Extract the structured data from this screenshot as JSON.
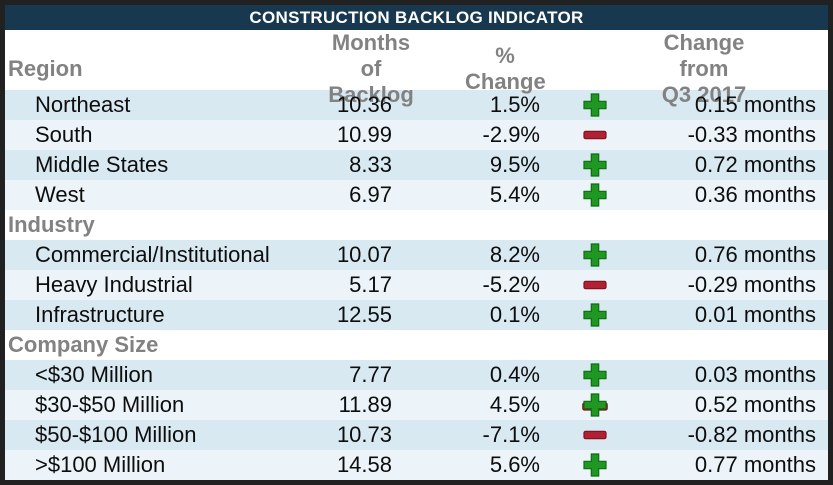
{
  "title": "CONSTRUCTION BACKLOG INDICATOR",
  "header": {
    "region_label": "Region",
    "months_lines": [
      "Months of",
      "Backlog"
    ],
    "pct_label": "% Change",
    "change_lines": [
      "Change from",
      "Q3 2017"
    ]
  },
  "colors": {
    "title_bar": "#17384f",
    "border": "#212121",
    "header_text": "#828282",
    "row_shade_a": "#d9e9f2",
    "row_shade_b": "#edf4f9",
    "positive_green": "#1f9722",
    "positive_green_edge": "#0f6d13",
    "negative_red": "#b02134",
    "negative_red_edge": "#7d1123"
  },
  "chart_data": {
    "type": "table",
    "title": "CONSTRUCTION BACKLOG INDICATOR",
    "columns": [
      "Region",
      "Months of Backlog",
      "% Change",
      "Direction",
      "Change from Q3 2017"
    ],
    "sections": [
      {
        "label": "Region",
        "own_row": false,
        "rows": [
          {
            "name": "Northeast",
            "months": 10.36,
            "pct": "1.5%",
            "direction": "up",
            "change": "0.15 months"
          },
          {
            "name": "South",
            "months": 10.99,
            "pct": "-2.9%",
            "direction": "down",
            "change": "-0.33 months"
          },
          {
            "name": "Middle States",
            "months": 8.33,
            "pct": "9.5%",
            "direction": "up",
            "change": "0.72 months"
          },
          {
            "name": "West",
            "months": 6.97,
            "pct": "5.4%",
            "direction": "up",
            "change": "0.36 months"
          }
        ]
      },
      {
        "label": "Industry",
        "own_row": true,
        "rows": [
          {
            "name": "Commercial/Institutional",
            "months": 10.07,
            "pct": "8.2%",
            "direction": "up",
            "change": "0.76 months"
          },
          {
            "name": "Heavy Industrial",
            "months": 5.17,
            "pct": "-5.2%",
            "direction": "down",
            "change": "-0.29 months"
          },
          {
            "name": "Infrastructure",
            "months": 12.55,
            "pct": "0.1%",
            "direction": "up",
            "change": "0.01 months"
          }
        ]
      },
      {
        "label": "Company Size",
        "own_row": true,
        "rows": [
          {
            "name": "<$30 Million",
            "months": 7.77,
            "pct": "0.4%",
            "direction": "up",
            "change": "0.03 months"
          },
          {
            "name": "$30-$50 Million",
            "months": 11.89,
            "pct": "4.5%",
            "direction": "up-down",
            "change": "0.52 months"
          },
          {
            "name": "$50-$100 Million",
            "months": 10.73,
            "pct": "-7.1%",
            "direction": "down",
            "change": "-0.82 months"
          },
          {
            "name": ">$100 Million",
            "months": 14.58,
            "pct": "5.6%",
            "direction": "up",
            "change": "0.77 months"
          }
        ]
      }
    ]
  }
}
